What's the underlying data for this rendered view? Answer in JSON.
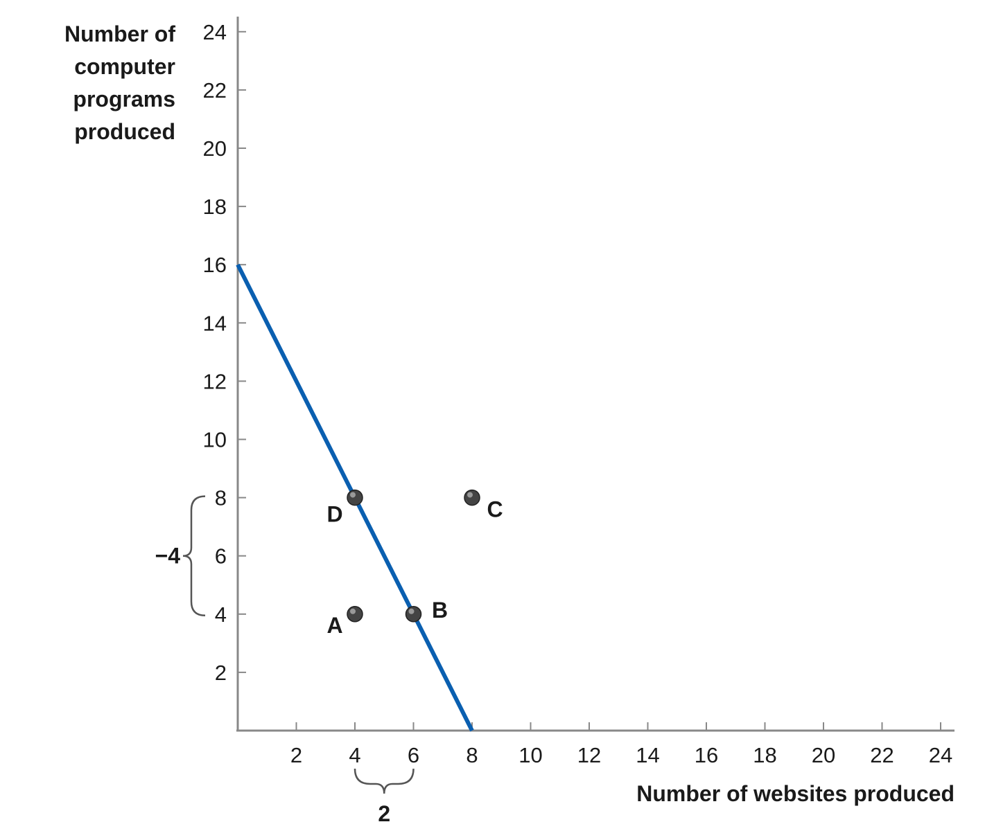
{
  "chart_data": {
    "type": "line",
    "title": "",
    "xlabel": "Number of websites produced",
    "ylabel_lines": [
      "Number of",
      "computer",
      "programs",
      "produced"
    ],
    "xlim": [
      0,
      24
    ],
    "ylim": [
      0,
      24
    ],
    "xticks": [
      2,
      4,
      6,
      8,
      10,
      12,
      14,
      16,
      18,
      20,
      22,
      24
    ],
    "yticks": [
      2,
      4,
      6,
      8,
      10,
      12,
      14,
      16,
      18,
      20,
      22,
      24
    ],
    "grid": false,
    "series": [
      {
        "x": [
          0,
          8
        ],
        "y": [
          16,
          0
        ],
        "color": "#0a5fb0"
      }
    ],
    "points": [
      {
        "label": "A",
        "x": 4,
        "y": 4
      },
      {
        "label": "B",
        "x": 6,
        "y": 4
      },
      {
        "label": "C",
        "x": 8,
        "y": 8
      },
      {
        "label": "D",
        "x": 4,
        "y": 8
      }
    ],
    "point_color": "#444444",
    "annotations": [
      {
        "text": "−4",
        "axis": "y",
        "from": 8,
        "to": 4
      },
      {
        "text": "2",
        "axis": "x",
        "from": 4,
        "to": 6
      }
    ]
  }
}
